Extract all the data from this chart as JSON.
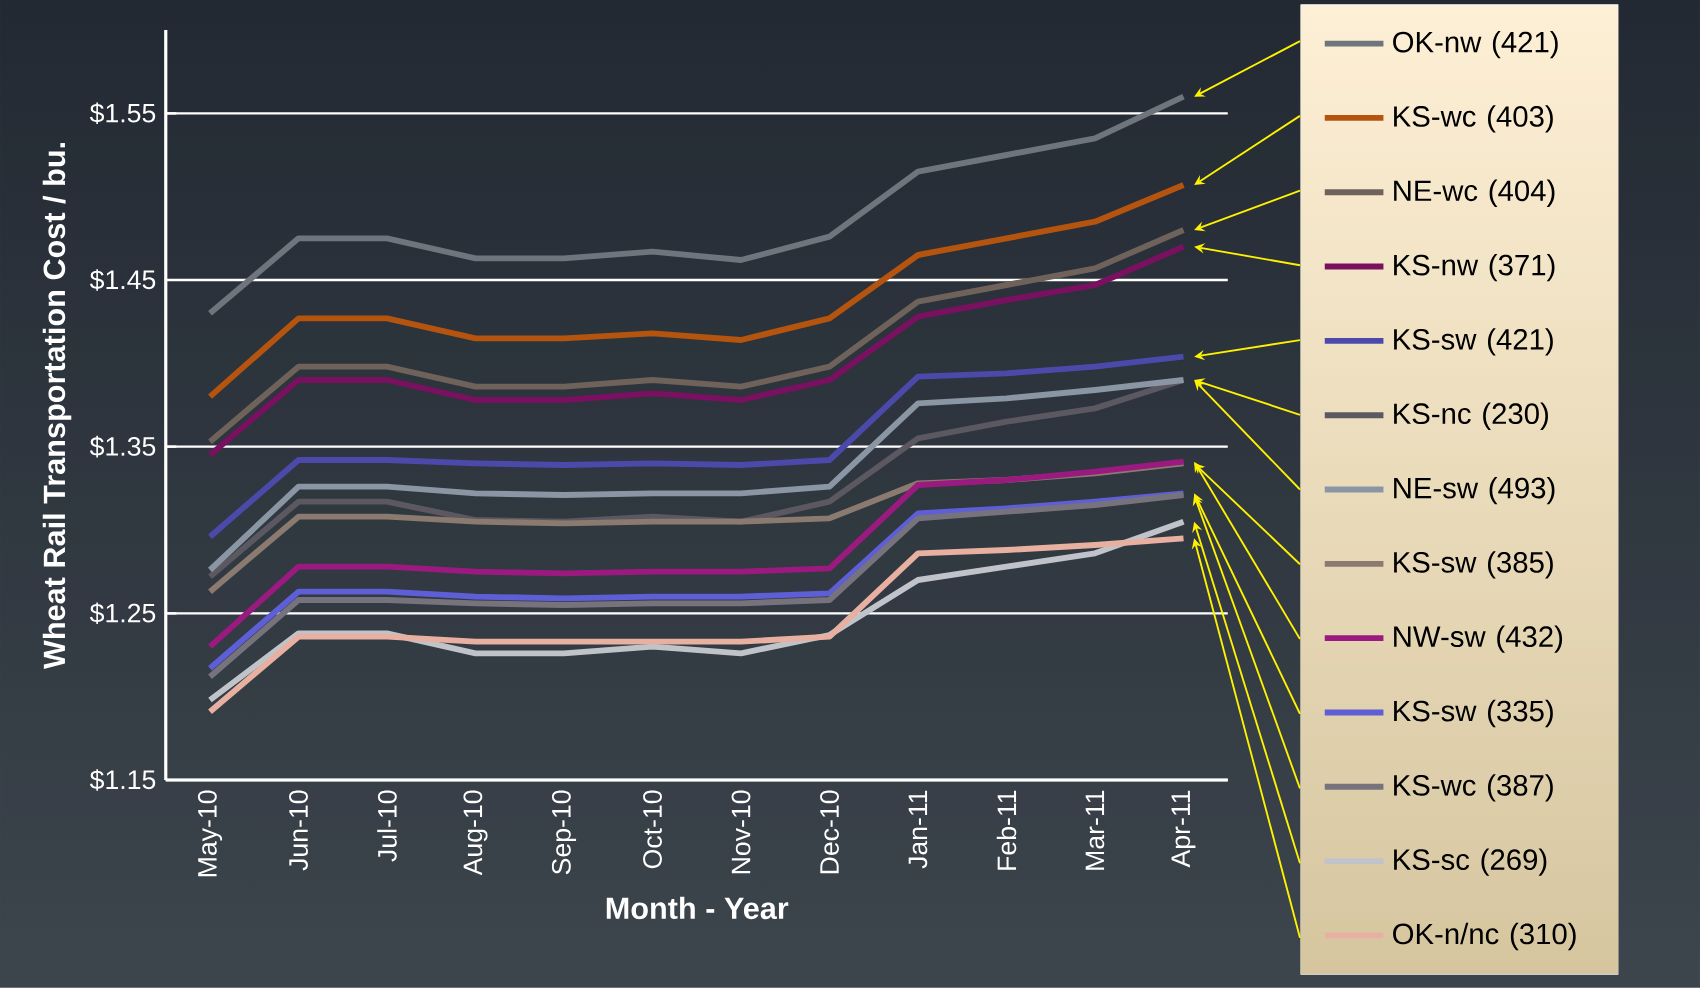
{
  "chart_data": {
    "type": "line",
    "xlabel": "Month - Year",
    "ylabel": "Wheat Rail Transportation Cost / bu.",
    "categories": [
      "May-10",
      "Jun-10",
      "Jul-10",
      "Aug-10",
      "Sep-10",
      "Oct-10",
      "Nov-10",
      "Dec-10",
      "Jan-11",
      "Feb-11",
      "Mar-11",
      "Apr-11"
    ],
    "ylim": [
      1.15,
      1.6
    ],
    "yticks": [
      {
        "value": 1.15,
        "label": "$1.15"
      },
      {
        "value": 1.25,
        "label": "$1.25"
      },
      {
        "value": 1.35,
        "label": "$1.35"
      },
      {
        "value": 1.45,
        "label": "$1.45"
      },
      {
        "value": 1.55,
        "label": "$1.55"
      }
    ],
    "grid": "y",
    "legend": "right",
    "series": [
      {
        "name": "OK-nw (421)",
        "color": "#6e757d",
        "values": [
          1.43,
          1.475,
          1.475,
          1.463,
          1.463,
          1.467,
          1.462,
          1.476,
          1.515,
          1.525,
          1.535,
          1.56
        ]
      },
      {
        "name": "KS-wc (403)",
        "color": "#b5540f",
        "values": [
          1.38,
          1.427,
          1.427,
          1.415,
          1.415,
          1.418,
          1.414,
          1.427,
          1.465,
          1.475,
          1.485,
          1.507
        ]
      },
      {
        "name": "NE-wc (404)",
        "color": "#6f625b",
        "values": [
          1.353,
          1.398,
          1.398,
          1.386,
          1.386,
          1.39,
          1.386,
          1.398,
          1.437,
          1.447,
          1.457,
          1.48
        ]
      },
      {
        "name": "KS-nw (371)",
        "color": "#7a1060",
        "values": [
          1.345,
          1.39,
          1.39,
          1.378,
          1.378,
          1.382,
          1.378,
          1.39,
          1.428,
          1.438,
          1.447,
          1.47
        ]
      },
      {
        "name": "KS-sw (421)",
        "color": "#4b4aab",
        "values": [
          1.296,
          1.342,
          1.342,
          1.34,
          1.339,
          1.34,
          1.339,
          1.342,
          1.392,
          1.394,
          1.398,
          1.404
        ]
      },
      {
        "name": "KS-nc (230)",
        "color": "#5c5862",
        "values": [
          1.272,
          1.317,
          1.317,
          1.306,
          1.305,
          1.308,
          1.305,
          1.317,
          1.355,
          1.365,
          1.373,
          1.39
        ]
      },
      {
        "name": "NE-sw (493)",
        "color": "#8a96a3",
        "values": [
          1.276,
          1.326,
          1.326,
          1.322,
          1.321,
          1.322,
          1.322,
          1.326,
          1.376,
          1.379,
          1.384,
          1.39
        ]
      },
      {
        "name": "KS-sw (385)",
        "color": "#8a7a70",
        "values": [
          1.263,
          1.308,
          1.308,
          1.305,
          1.304,
          1.305,
          1.305,
          1.307,
          1.328,
          1.33,
          1.334,
          1.34
        ]
      },
      {
        "name": "NW-sw (432)",
        "color": "#9a1a80",
        "values": [
          1.23,
          1.278,
          1.278,
          1.275,
          1.274,
          1.275,
          1.275,
          1.277,
          1.327,
          1.33,
          1.335,
          1.341
        ]
      },
      {
        "name": "KS-sw (335)",
        "color": "#5e5ed6",
        "values": [
          1.217,
          1.263,
          1.263,
          1.26,
          1.259,
          1.26,
          1.26,
          1.262,
          1.31,
          1.313,
          1.317,
          1.322
        ]
      },
      {
        "name": "KS-wc (387)",
        "color": "#77737d",
        "values": [
          1.212,
          1.258,
          1.258,
          1.256,
          1.255,
          1.256,
          1.256,
          1.258,
          1.307,
          1.311,
          1.315,
          1.321
        ]
      },
      {
        "name": "KS-sc (269)",
        "color": "#c0c4ca",
        "values": [
          1.198,
          1.238,
          1.238,
          1.226,
          1.226,
          1.23,
          1.226,
          1.237,
          1.27,
          1.278,
          1.286,
          1.305
        ]
      },
      {
        "name": "OK-n/nc (310)",
        "color": "#e8b0a0",
        "values": [
          1.191,
          1.236,
          1.236,
          1.233,
          1.233,
          1.233,
          1.233,
          1.236,
          1.286,
          1.288,
          1.291,
          1.295
        ]
      }
    ]
  }
}
